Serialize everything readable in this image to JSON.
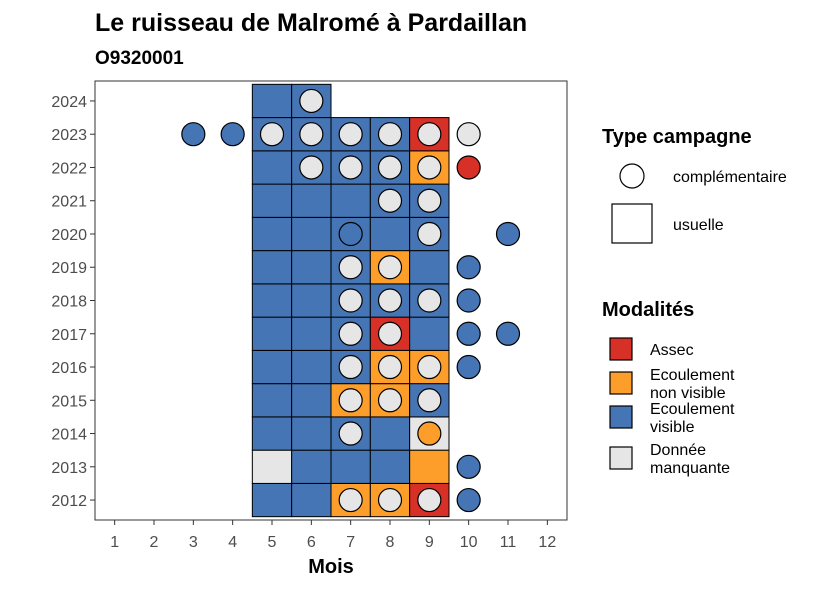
{
  "chart_data": {
    "type": "heatmap",
    "title": "Le ruisseau de Malromé à Pardaillan",
    "subtitle": "O9320001",
    "xlabel": "Mois",
    "ylabel": "",
    "x_ticks": [
      "1",
      "2",
      "3",
      "4",
      "5",
      "6",
      "7",
      "8",
      "9",
      "10",
      "11",
      "12"
    ],
    "y_ticks": [
      "2012",
      "2013",
      "2014",
      "2015",
      "2016",
      "2017",
      "2018",
      "2019",
      "2020",
      "2021",
      "2022",
      "2023",
      "2024"
    ],
    "xlim": [
      0.5,
      12.5
    ],
    "ylim": [
      2011.4,
      2024.6
    ],
    "modalites": [
      {
        "key": "A",
        "label_lines": [
          "Assec"
        ],
        "color": "#D73027"
      },
      {
        "key": "N",
        "label_lines": [
          "Ecoulement",
          "non visible"
        ],
        "color": "#FD9E2A"
      },
      {
        "key": "V",
        "label_lines": [
          "Ecoulement",
          "visible"
        ],
        "color": "#4575B4"
      },
      {
        "key": "M",
        "label_lines": [
          "Donnée",
          "manquante"
        ],
        "color": "#E6E6E6"
      }
    ],
    "type_campagne": {
      "title": "Type campagne",
      "complementaire": "complémentaire",
      "usuelle": "usuelle"
    },
    "modalites_title": "Modalités",
    "usuelle": [
      {
        "year": 2012,
        "months": [
          5,
          6,
          7,
          8,
          9
        ],
        "values": [
          "V",
          "V",
          "N",
          "N",
          "A"
        ]
      },
      {
        "year": 2013,
        "months": [
          5,
          6,
          7,
          8,
          9
        ],
        "values": [
          "M",
          "V",
          "V",
          "V",
          "N"
        ]
      },
      {
        "year": 2014,
        "months": [
          5,
          6,
          7,
          8,
          9
        ],
        "values": [
          "V",
          "V",
          "V",
          "V",
          "M"
        ]
      },
      {
        "year": 2015,
        "months": [
          5,
          6,
          7,
          8,
          9
        ],
        "values": [
          "V",
          "V",
          "N",
          "N",
          "V"
        ]
      },
      {
        "year": 2016,
        "months": [
          5,
          6,
          7,
          8,
          9
        ],
        "values": [
          "V",
          "V",
          "V",
          "N",
          "N"
        ]
      },
      {
        "year": 2017,
        "months": [
          5,
          6,
          7,
          8,
          9
        ],
        "values": [
          "V",
          "V",
          "V",
          "A",
          "V"
        ]
      },
      {
        "year": 2018,
        "months": [
          5,
          6,
          7,
          8,
          9
        ],
        "values": [
          "V",
          "V",
          "V",
          "V",
          "V"
        ]
      },
      {
        "year": 2019,
        "months": [
          5,
          6,
          7,
          8,
          9
        ],
        "values": [
          "V",
          "V",
          "V",
          "N",
          "V"
        ]
      },
      {
        "year": 2020,
        "months": [
          5,
          6,
          7,
          8,
          9
        ],
        "values": [
          "V",
          "V",
          "V",
          "V",
          "V"
        ]
      },
      {
        "year": 2021,
        "months": [
          5,
          6,
          7,
          8,
          9
        ],
        "values": [
          "V",
          "V",
          "V",
          "V",
          "V"
        ]
      },
      {
        "year": 2022,
        "months": [
          5,
          6,
          7,
          8,
          9
        ],
        "values": [
          "V",
          "V",
          "V",
          "V",
          "N"
        ]
      },
      {
        "year": 2023,
        "months": [
          5,
          6,
          7,
          8,
          9
        ],
        "values": [
          "V",
          "V",
          "V",
          "V",
          "A"
        ]
      },
      {
        "year": 2024,
        "months": [
          5,
          6
        ],
        "values": [
          "V",
          "V"
        ]
      }
    ],
    "complementaire": [
      {
        "year": 2012,
        "month": 7,
        "value": "M"
      },
      {
        "year": 2012,
        "month": 8,
        "value": "M"
      },
      {
        "year": 2012,
        "month": 9,
        "value": "M"
      },
      {
        "year": 2012,
        "month": 10,
        "value": "V"
      },
      {
        "year": 2013,
        "month": 10,
        "value": "V"
      },
      {
        "year": 2014,
        "month": 7,
        "value": "M"
      },
      {
        "year": 2014,
        "month": 9,
        "value": "N"
      },
      {
        "year": 2015,
        "month": 7,
        "value": "M"
      },
      {
        "year": 2015,
        "month": 8,
        "value": "M"
      },
      {
        "year": 2015,
        "month": 9,
        "value": "M"
      },
      {
        "year": 2016,
        "month": 7,
        "value": "M"
      },
      {
        "year": 2016,
        "month": 8,
        "value": "M"
      },
      {
        "year": 2016,
        "month": 9,
        "value": "M"
      },
      {
        "year": 2016,
        "month": 10,
        "value": "V"
      },
      {
        "year": 2017,
        "month": 7,
        "value": "M"
      },
      {
        "year": 2017,
        "month": 8,
        "value": "M"
      },
      {
        "year": 2017,
        "month": 10,
        "value": "V"
      },
      {
        "year": 2017,
        "month": 11,
        "value": "V"
      },
      {
        "year": 2018,
        "month": 7,
        "value": "M"
      },
      {
        "year": 2018,
        "month": 8,
        "value": "M"
      },
      {
        "year": 2018,
        "month": 9,
        "value": "M"
      },
      {
        "year": 2018,
        "month": 10,
        "value": "V"
      },
      {
        "year": 2019,
        "month": 7,
        "value": "M"
      },
      {
        "year": 2019,
        "month": 8,
        "value": "M"
      },
      {
        "year": 2019,
        "month": 10,
        "value": "V"
      },
      {
        "year": 2020,
        "month": 7,
        "value": "V"
      },
      {
        "year": 2020,
        "month": 9,
        "value": "M"
      },
      {
        "year": 2020,
        "month": 11,
        "value": "V"
      },
      {
        "year": 2021,
        "month": 8,
        "value": "M"
      },
      {
        "year": 2021,
        "month": 9,
        "value": "M"
      },
      {
        "year": 2022,
        "month": 6,
        "value": "M"
      },
      {
        "year": 2022,
        "month": 7,
        "value": "M"
      },
      {
        "year": 2022,
        "month": 8,
        "value": "M"
      },
      {
        "year": 2022,
        "month": 9,
        "value": "M"
      },
      {
        "year": 2022,
        "month": 10,
        "value": "A"
      },
      {
        "year": 2023,
        "month": 3,
        "value": "V"
      },
      {
        "year": 2023,
        "month": 4,
        "value": "V"
      },
      {
        "year": 2023,
        "month": 5,
        "value": "M"
      },
      {
        "year": 2023,
        "month": 6,
        "value": "M"
      },
      {
        "year": 2023,
        "month": 7,
        "value": "M"
      },
      {
        "year": 2023,
        "month": 8,
        "value": "M"
      },
      {
        "year": 2023,
        "month": 9,
        "value": "M"
      },
      {
        "year": 2023,
        "month": 10,
        "value": "M"
      },
      {
        "year": 2024,
        "month": 6,
        "value": "M"
      }
    ]
  }
}
